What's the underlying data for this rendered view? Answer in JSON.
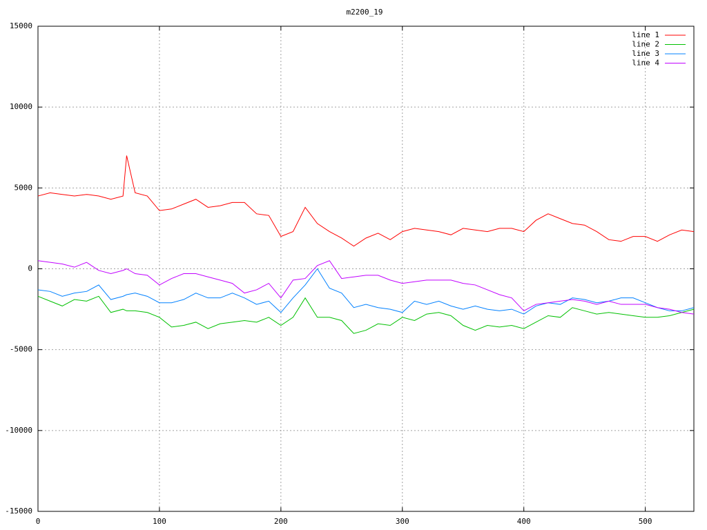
{
  "chart_data": {
    "type": "line",
    "title": "m2200_19",
    "x": [
      0,
      10,
      20,
      30,
      40,
      50,
      60,
      70,
      73,
      80,
      90,
      100,
      110,
      120,
      130,
      140,
      150,
      160,
      170,
      180,
      190,
      200,
      210,
      220,
      230,
      240,
      250,
      260,
      270,
      280,
      290,
      300,
      310,
      320,
      330,
      340,
      350,
      360,
      370,
      380,
      390,
      400,
      410,
      420,
      430,
      440,
      450,
      460,
      470,
      480,
      490,
      500,
      510,
      520,
      530,
      540
    ],
    "series": [
      {
        "name": "line 1",
        "color": "#ff0000",
        "values": [
          4500,
          4700,
          4600,
          4500,
          4600,
          4500,
          4300,
          4500,
          7000,
          4700,
          4500,
          3600,
          3700,
          4000,
          4300,
          3800,
          3900,
          4100,
          4100,
          3400,
          3300,
          2000,
          2300,
          3800,
          2800,
          2300,
          1900,
          1400,
          1900,
          2200,
          1800,
          2300,
          2500,
          2400,
          2300,
          2100,
          2500,
          2400,
          2300,
          2500,
          2500,
          2300,
          3000,
          3400,
          3100,
          2800,
          2700,
          2300,
          1800,
          1700,
          2000,
          2000,
          1700,
          2100,
          2400,
          2300
        ]
      },
      {
        "name": "line 2",
        "color": "#00c000",
        "values": [
          -1700,
          -2000,
          -2300,
          -1900,
          -2000,
          -1700,
          -2700,
          -2500,
          -2600,
          -2600,
          -2700,
          -3000,
          -3600,
          -3500,
          -3300,
          -3700,
          -3400,
          -3300,
          -3200,
          -3300,
          -3000,
          -3500,
          -3000,
          -1800,
          -3000,
          -3000,
          -3200,
          -4000,
          -3800,
          -3400,
          -3500,
          -3000,
          -3200,
          -2800,
          -2700,
          -2900,
          -3500,
          -3800,
          -3500,
          -3600,
          -3500,
          -3700,
          -3300,
          -2900,
          -3000,
          -2400,
          -2600,
          -2800,
          -2700,
          -2800,
          -2900,
          -3000,
          -3000,
          -2900,
          -2700,
          -2500
        ]
      },
      {
        "name": "line 3",
        "color": "#0080ff",
        "values": [
          -1300,
          -1400,
          -1700,
          -1500,
          -1400,
          -1000,
          -1900,
          -1700,
          -1600,
          -1500,
          -1700,
          -2100,
          -2100,
          -1900,
          -1500,
          -1800,
          -1800,
          -1500,
          -1800,
          -2200,
          -2000,
          -2700,
          -1800,
          -1000,
          0,
          -1200,
          -1500,
          -2400,
          -2200,
          -2400,
          -2500,
          -2700,
          -2000,
          -2200,
          -2000,
          -2300,
          -2500,
          -2300,
          -2500,
          -2600,
          -2500,
          -2800,
          -2300,
          -2100,
          -2200,
          -1800,
          -1900,
          -2100,
          -2000,
          -1800,
          -1800,
          -2100,
          -2400,
          -2600,
          -2600,
          -2400
        ]
      },
      {
        "name": "line 4",
        "color": "#c000ff",
        "values": [
          500,
          400,
          300,
          100,
          400,
          -100,
          -300,
          -100,
          0,
          -300,
          -400,
          -1000,
          -600,
          -300,
          -300,
          -500,
          -700,
          -900,
          -1500,
          -1300,
          -900,
          -1800,
          -700,
          -600,
          200,
          500,
          -600,
          -500,
          -400,
          -400,
          -700,
          -900,
          -800,
          -700,
          -700,
          -700,
          -900,
          -1000,
          -1300,
          -1600,
          -1800,
          -2600,
          -2200,
          -2100,
          -2000,
          -1900,
          -2000,
          -2200,
          -2000,
          -2200,
          -2200,
          -2200,
          -2400,
          -2500,
          -2700,
          -2800
        ]
      }
    ],
    "xlim": [
      0,
      540
    ],
    "xticks": [
      0,
      100,
      200,
      300,
      400,
      500
    ],
    "ylim": [
      -15000,
      15000
    ],
    "yticks": [
      -15000,
      -10000,
      -5000,
      0,
      5000,
      10000,
      15000
    ],
    "grid": true,
    "legend": "top-right"
  }
}
